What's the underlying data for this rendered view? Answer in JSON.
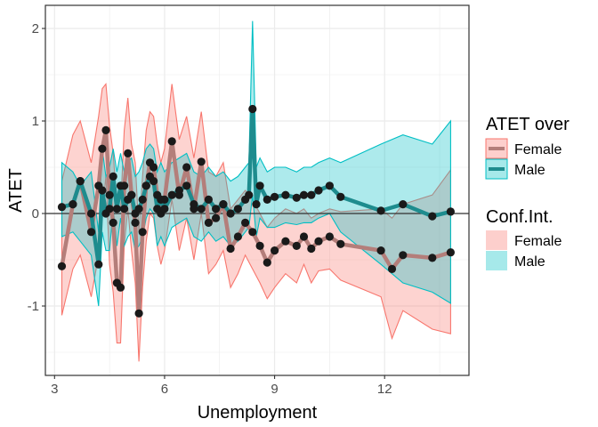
{
  "colors": {
    "female": "#F8766D",
    "male": "#00BFC4",
    "female_line": "#B47E7A",
    "male_line": "#1E8C8E",
    "point": "#1a1a1a",
    "grid": "#ebebeb"
  },
  "chart_data": {
    "type": "line",
    "xlabel": "Unemployment",
    "ylabel": "ATET",
    "xlim": [
      2.75,
      14.3
    ],
    "ylim": [
      -1.75,
      2.25
    ],
    "xticks": [
      3,
      6,
      9,
      12
    ],
    "yticks": [
      -1,
      0,
      1,
      2
    ],
    "hline": 0,
    "grid": true,
    "legend_position": "right",
    "legend_line_title": "ATET over",
    "legend_band_title": "Conf.Int.",
    "series": [
      {
        "name": "Female",
        "color_key": "female",
        "x": [
          3.2,
          3.5,
          3.7,
          4.0,
          4.2,
          4.3,
          4.4,
          4.5,
          4.6,
          4.7,
          4.8,
          4.9,
          5.0,
          5.1,
          5.2,
          5.3,
          5.4,
          5.5,
          5.6,
          5.7,
          5.8,
          5.9,
          6.0,
          6.2,
          6.4,
          6.6,
          6.8,
          7.0,
          7.2,
          7.4,
          7.6,
          7.8,
          8.0,
          8.2,
          8.4,
          8.6,
          8.8,
          9.0,
          9.3,
          9.6,
          9.8,
          10.0,
          10.2,
          10.5,
          10.8,
          11.9,
          12.2,
          12.5,
          13.3,
          13.8
        ],
        "y": [
          -0.57,
          0.1,
          0.35,
          -0.2,
          0.3,
          0.7,
          0.9,
          0.2,
          -0.1,
          -0.75,
          -0.8,
          0.3,
          0.65,
          0.2,
          -0.1,
          -1.08,
          -0.2,
          0.3,
          0.55,
          0.5,
          0.2,
          0.0,
          0.15,
          0.78,
          0.2,
          0.5,
          0.05,
          0.56,
          -0.1,
          -0.05,
          0.1,
          -0.38,
          -0.25,
          -0.1,
          -0.2,
          -0.35,
          -0.53,
          -0.4,
          -0.3,
          -0.35,
          -0.25,
          -0.38,
          -0.3,
          -0.25,
          -0.33,
          -0.4,
          -0.6,
          -0.45,
          -0.48,
          -0.42
        ],
        "upper": [
          0.35,
          0.85,
          1.0,
          0.55,
          1.05,
          1.35,
          1.4,
          0.95,
          0.65,
          0.1,
          0.05,
          0.9,
          1.25,
          0.75,
          0.55,
          -0.2,
          0.4,
          0.9,
          1.1,
          1.05,
          0.75,
          0.55,
          0.7,
          1.4,
          0.8,
          1.05,
          0.6,
          1.1,
          0.45,
          0.4,
          0.55,
          0.05,
          0.15,
          0.25,
          0.15,
          0.0,
          -0.15,
          -0.05,
          0.05,
          0.0,
          0.05,
          -0.05,
          0.0,
          0.05,
          0.02,
          0.05,
          -0.05,
          0.1,
          0.2,
          0.47
        ],
        "lower": [
          -1.1,
          -0.6,
          -0.45,
          -0.9,
          -0.45,
          0.0,
          0.4,
          -0.55,
          -0.85,
          -1.4,
          -1.4,
          -0.35,
          0.05,
          -0.4,
          -0.75,
          -1.6,
          -0.8,
          -0.3,
          0.0,
          -0.05,
          -0.35,
          -0.55,
          -0.4,
          0.15,
          -0.4,
          -0.05,
          -0.5,
          0.0,
          -0.65,
          -0.55,
          -0.4,
          -0.8,
          -0.65,
          -0.45,
          -0.6,
          -0.75,
          -0.92,
          -0.8,
          -0.65,
          -0.75,
          -0.55,
          -0.75,
          -0.62,
          -0.6,
          -0.72,
          -0.9,
          -1.35,
          -1.05,
          -1.25,
          -1.3
        ]
      },
      {
        "name": "Male",
        "color_key": "male",
        "x": [
          3.2,
          3.5,
          3.7,
          4.0,
          4.2,
          4.3,
          4.4,
          4.5,
          4.6,
          4.7,
          4.8,
          4.9,
          5.0,
          5.1,
          5.2,
          5.3,
          5.4,
          5.5,
          5.6,
          5.7,
          5.8,
          5.9,
          6.0,
          6.2,
          6.4,
          6.6,
          6.8,
          7.0,
          7.2,
          7.4,
          7.6,
          7.8,
          8.0,
          8.2,
          8.3,
          8.4,
          8.5,
          8.6,
          8.8,
          9.0,
          9.3,
          9.6,
          9.8,
          10.0,
          10.2,
          10.5,
          10.8,
          11.9,
          12.5,
          13.3,
          13.8
        ],
        "y": [
          0.07,
          0.1,
          0.35,
          0.0,
          -0.55,
          0.25,
          0.0,
          0.05,
          0.4,
          0.05,
          0.3,
          0.05,
          0.15,
          0.2,
          0.0,
          0.05,
          0.15,
          0.3,
          0.4,
          0.35,
          0.05,
          0.15,
          0.05,
          0.2,
          0.25,
          0.3,
          0.1,
          0.05,
          0.15,
          0.05,
          0.1,
          0.0,
          0.05,
          0.15,
          0.2,
          1.13,
          0.1,
          0.3,
          0.15,
          0.18,
          0.2,
          0.17,
          0.2,
          0.2,
          0.25,
          0.3,
          0.18,
          0.03,
          0.1,
          -0.03,
          0.02
        ],
        "upper": [
          0.55,
          0.45,
          0.3,
          0.45,
          -0.2,
          0.7,
          0.4,
          0.5,
          0.7,
          0.45,
          0.65,
          0.45,
          0.55,
          0.6,
          0.4,
          0.45,
          0.55,
          0.7,
          0.75,
          0.7,
          0.45,
          0.55,
          0.45,
          0.55,
          0.6,
          0.65,
          0.45,
          0.4,
          0.5,
          0.4,
          0.45,
          0.35,
          0.4,
          0.5,
          0.55,
          2.08,
          0.5,
          0.6,
          0.45,
          0.5,
          0.5,
          0.45,
          0.5,
          0.5,
          0.55,
          0.6,
          0.55,
          0.75,
          0.85,
          0.75,
          1.0
        ],
        "lower": [
          -0.25,
          -0.2,
          -0.3,
          -0.45,
          -1.0,
          -0.2,
          -0.4,
          -0.4,
          0.05,
          -0.35,
          -0.05,
          -0.35,
          -0.25,
          -0.2,
          -0.4,
          -0.35,
          -0.25,
          -0.05,
          0.05,
          0.0,
          -0.35,
          -0.25,
          -0.35,
          -0.15,
          -0.1,
          -0.05,
          -0.25,
          -0.3,
          -0.2,
          -0.3,
          -0.25,
          -0.35,
          -0.3,
          -0.2,
          -0.15,
          0.2,
          -0.25,
          -0.05,
          -0.15,
          -0.15,
          -0.1,
          -0.12,
          -0.1,
          -0.1,
          -0.05,
          0.0,
          -0.2,
          -0.55,
          -0.75,
          -0.85,
          -0.97
        ]
      }
    ]
  }
}
